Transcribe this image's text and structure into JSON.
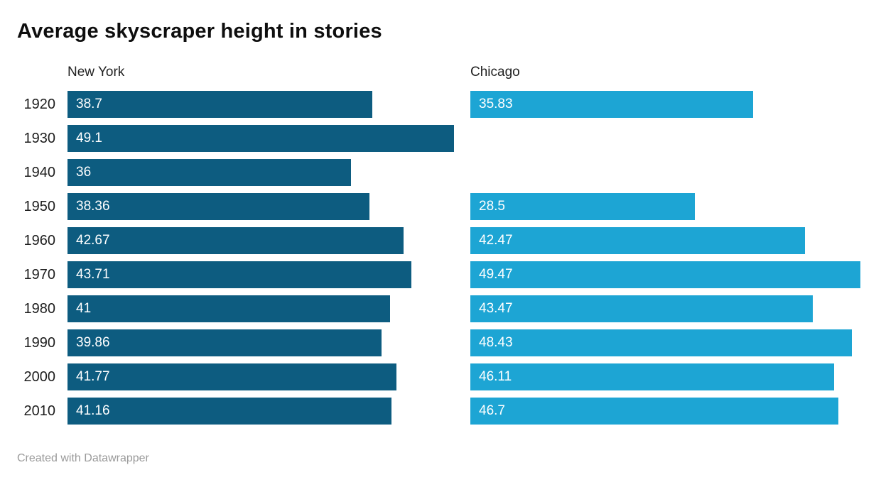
{
  "header": {
    "title": "Average skyscraper height in stories"
  },
  "footer": {
    "credit": "Created with Datawrapper"
  },
  "colors": {
    "new_york_bar": "#0d5c80",
    "chicago_bar": "#1da5d4",
    "bar_label_text": "#ffffff",
    "year_label_text": "#1d1d1d",
    "footer_text": "#9a9a9a"
  },
  "chart_data": {
    "type": "bar",
    "orientation": "horizontal",
    "layout": "split-columns",
    "title": "Average skyscraper height in stories",
    "categories": [
      "1920",
      "1930",
      "1940",
      "1950",
      "1960",
      "1970",
      "1980",
      "1990",
      "2000",
      "2010"
    ],
    "series": [
      {
        "name": "New York",
        "color": "#0d5c80",
        "values": [
          38.7,
          49.1,
          36,
          38.36,
          42.67,
          43.71,
          41,
          39.86,
          41.77,
          41.16
        ]
      },
      {
        "name": "Chicago",
        "color": "#1da5d4",
        "values": [
          35.83,
          null,
          null,
          28.5,
          42.47,
          49.47,
          43.47,
          48.43,
          46.11,
          46.7
        ]
      }
    ],
    "xmax": 49.47,
    "value_labels": "inside-bar-start",
    "grid": false,
    "legend_position": "column-headers"
  }
}
